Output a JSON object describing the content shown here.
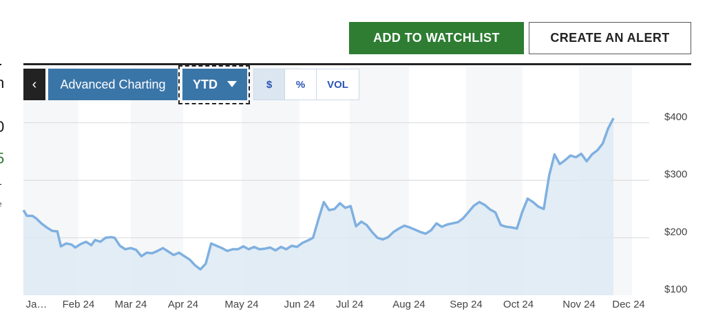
{
  "actions": {
    "watchlist_label": "ADD TO WATCHLIST",
    "alert_label": "CREATE AN ALERT"
  },
  "left_edge": {
    "mark_a": "n",
    "mark_b": "0",
    "mark_c": "5",
    "mark_d": "e"
  },
  "toolbar": {
    "back_label": "‹",
    "advanced_label": "Advanced Charting",
    "period_label": "YTD",
    "toggles": {
      "dollar": "$",
      "percent": "%",
      "volume": "VOL"
    }
  },
  "colors": {
    "accent": "#3a75a8",
    "green": "#2e7d32",
    "line": "#7fb0e0",
    "fill": "#dce8f4"
  },
  "chart_data": {
    "type": "area",
    "title": "",
    "x_tick_labels": [
      "Ja…",
      "Feb 24",
      "Mar 24",
      "Apr 24",
      "May 24",
      "Jun 24",
      "Jul 24",
      "Aug 24",
      "Sep 24",
      "Oct 24",
      "Nov 24",
      "Dec 24"
    ],
    "y_tick_labels": [
      "$400",
      "$300",
      "$200",
      "$100"
    ],
    "y_ticks": [
      400,
      300,
      200,
      100
    ],
    "ylim": [
      100,
      450
    ],
    "xlim": [
      0,
      350
    ],
    "grid": true,
    "series": [
      {
        "values": [
          [
            0,
            248
          ],
          [
            2,
            238
          ],
          [
            5,
            238
          ],
          [
            7,
            234
          ],
          [
            10,
            225
          ],
          [
            13,
            218
          ],
          [
            16,
            212
          ],
          [
            19,
            211
          ],
          [
            21,
            185
          ],
          [
            24,
            190
          ],
          [
            27,
            188
          ],
          [
            29,
            183
          ],
          [
            32,
            189
          ],
          [
            35,
            193
          ],
          [
            38,
            187
          ],
          [
            40,
            196
          ],
          [
            43,
            193
          ],
          [
            46,
            200
          ],
          [
            49,
            201
          ],
          [
            51,
            200
          ],
          [
            54,
            186
          ],
          [
            57,
            180
          ],
          [
            60,
            182
          ],
          [
            63,
            179
          ],
          [
            66,
            168
          ],
          [
            69,
            174
          ],
          [
            72,
            173
          ],
          [
            75,
            177
          ],
          [
            78,
            182
          ],
          [
            81,
            176
          ],
          [
            84,
            170
          ],
          [
            87,
            174
          ],
          [
            90,
            168
          ],
          [
            93,
            162
          ],
          [
            96,
            152
          ],
          [
            99,
            145
          ],
          [
            102,
            155
          ],
          [
            105,
            190
          ],
          [
            108,
            186
          ],
          [
            111,
            182
          ],
          [
            114,
            177
          ],
          [
            117,
            180
          ],
          [
            120,
            180
          ],
          [
            123,
            185
          ],
          [
            126,
            180
          ],
          [
            129,
            184
          ],
          [
            132,
            180
          ],
          [
            135,
            181
          ],
          [
            138,
            183
          ],
          [
            141,
            178
          ],
          [
            144,
            184
          ],
          [
            147,
            180
          ],
          [
            150,
            186
          ],
          [
            153,
            184
          ],
          [
            156,
            191
          ],
          [
            159,
            195
          ],
          [
            162,
            200
          ],
          [
            165,
            232
          ],
          [
            168,
            262
          ],
          [
            171,
            248
          ],
          [
            174,
            250
          ],
          [
            177,
            260
          ],
          [
            180,
            252
          ],
          [
            183,
            255
          ],
          [
            186,
            220
          ],
          [
            189,
            228
          ],
          [
            192,
            222
          ],
          [
            195,
            210
          ],
          [
            198,
            200
          ],
          [
            201,
            197
          ],
          [
            204,
            201
          ],
          [
            207,
            210
          ],
          [
            210,
            216
          ],
          [
            213,
            221
          ],
          [
            216,
            218
          ],
          [
            219,
            214
          ],
          [
            222,
            210
          ],
          [
            225,
            207
          ],
          [
            228,
            213
          ],
          [
            231,
            225
          ],
          [
            234,
            219
          ],
          [
            237,
            223
          ],
          [
            240,
            225
          ],
          [
            243,
            227
          ],
          [
            246,
            234
          ],
          [
            249,
            245
          ],
          [
            252,
            256
          ],
          [
            255,
            262
          ],
          [
            258,
            257
          ],
          [
            261,
            249
          ],
          [
            264,
            244
          ],
          [
            267,
            222
          ],
          [
            270,
            219
          ],
          [
            273,
            218
          ],
          [
            276,
            216
          ],
          [
            279,
            245
          ],
          [
            282,
            268
          ],
          [
            285,
            262
          ],
          [
            288,
            254
          ],
          [
            291,
            250
          ],
          [
            294,
            308
          ],
          [
            297,
            345
          ],
          [
            300,
            328
          ],
          [
            303,
            335
          ],
          [
            306,
            343
          ],
          [
            309,
            340
          ],
          [
            312,
            346
          ],
          [
            315,
            333
          ],
          [
            318,
            345
          ],
          [
            321,
            352
          ],
          [
            324,
            364
          ],
          [
            327,
            390
          ],
          [
            330,
            408
          ]
        ]
      }
    ]
  }
}
